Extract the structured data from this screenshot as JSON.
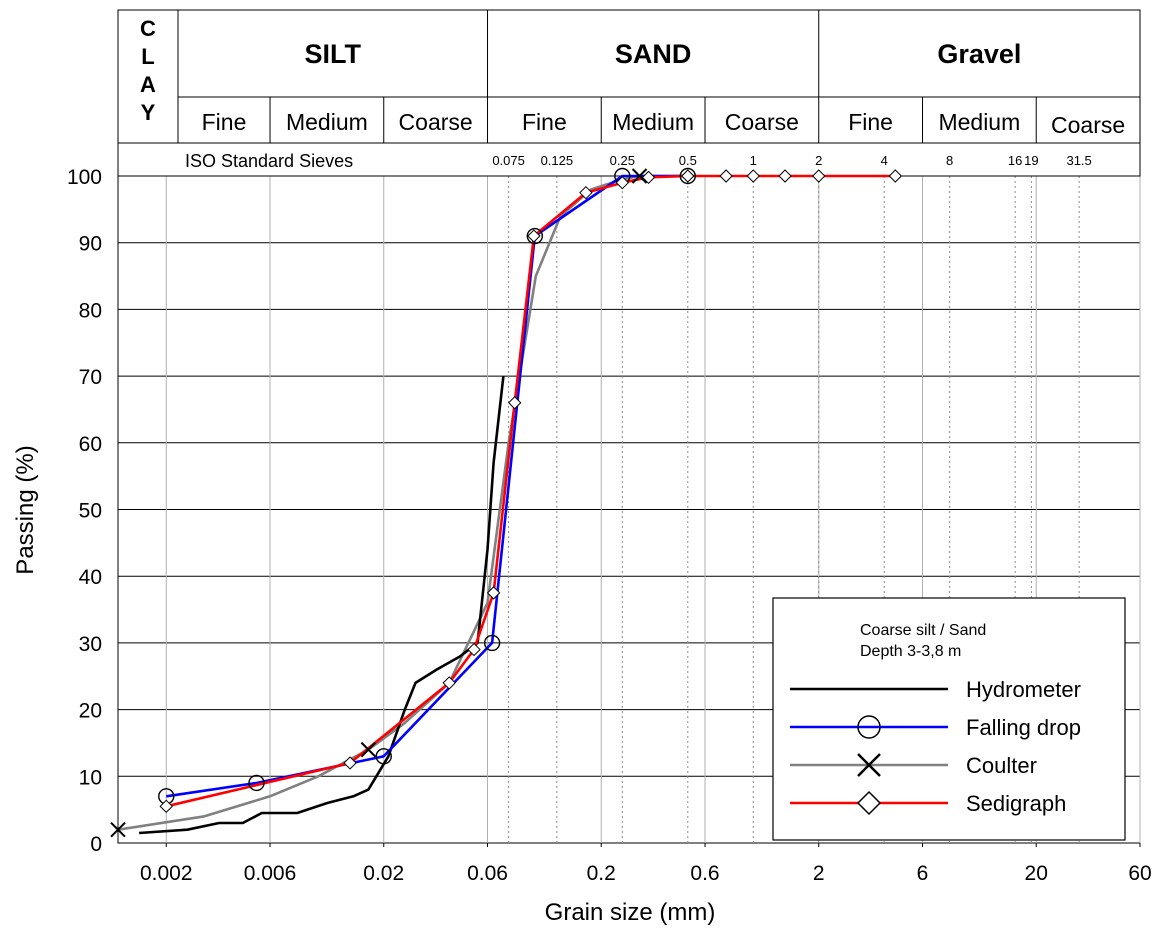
{
  "chart_data": {
    "type": "line",
    "xlabel": "Grain size (mm)",
    "ylabel": "Passing (%)",
    "x_scale": "log",
    "xlim": [
      0.0012,
      60
    ],
    "ylim": [
      0,
      100
    ],
    "grid": true,
    "x_ticks": [
      0.002,
      0.006,
      0.02,
      0.06,
      0.2,
      0.6,
      2,
      6,
      20,
      60
    ],
    "x_tick_labels": [
      "0.002",
      "0.006",
      "0.02",
      "0.06",
      "0.2",
      "0.6",
      "2",
      "6",
      "20",
      "60"
    ],
    "y_ticks": [
      0,
      10,
      20,
      30,
      40,
      50,
      60,
      70,
      80,
      90,
      100
    ],
    "classification": {
      "clay_label": "CLAY",
      "groups": [
        {
          "name": "SILT",
          "from": 0.002,
          "to": 0.06,
          "subs": [
            {
              "name": "Fine",
              "from": 0.002,
              "to": 0.006
            },
            {
              "name": "Medium",
              "from": 0.006,
              "to": 0.02
            },
            {
              "name": "Coarse",
              "from": 0.02,
              "to": 0.06
            }
          ]
        },
        {
          "name": "SAND",
          "from": 0.06,
          "to": 2,
          "subs": [
            {
              "name": "Fine",
              "from": 0.06,
              "to": 0.2
            },
            {
              "name": "Medium",
              "from": 0.2,
              "to": 0.6
            },
            {
              "name": "Coarse",
              "from": 0.6,
              "to": 2
            }
          ]
        },
        {
          "name": "Gravel",
          "from": 2,
          "to": 60,
          "subs": [
            {
              "name": "Fine",
              "from": 2,
              "to": 6
            },
            {
              "name": "Medium",
              "from": 6,
              "to": 20
            },
            {
              "name": "Coarse",
              "from": 20,
              "to": 60
            }
          ]
        }
      ]
    },
    "sieves": {
      "title": "ISO Standard Sieves",
      "values": [
        0.075,
        0.125,
        0.25,
        0.5,
        1,
        2,
        4,
        8,
        16,
        19,
        31.5
      ],
      "labels": [
        "0.075",
        "0.125",
        "0.25",
        "0.5",
        "1",
        "2",
        "4",
        "8",
        "16",
        "19",
        "31.5"
      ]
    },
    "legend": {
      "title_lines": [
        "Coarse silt / Sand",
        "Depth 3-3,8 m"
      ],
      "placement": "bottom-right"
    },
    "series": [
      {
        "name": "Hydrometer",
        "color": "#000000",
        "marker": "none",
        "x": [
          0.0015,
          0.0025,
          0.0035,
          0.0045,
          0.0055,
          0.0065,
          0.008,
          0.011,
          0.0145,
          0.017,
          0.021,
          0.025,
          0.028,
          0.035,
          0.045,
          0.054,
          0.06,
          0.064,
          0.071
        ],
        "y": [
          1.5,
          2,
          3,
          3,
          4.5,
          4.5,
          4.5,
          6,
          7,
          8,
          13,
          20,
          24,
          26,
          28,
          30,
          44,
          57,
          70
        ]
      },
      {
        "name": "Falling drop",
        "color": "#0000ff",
        "marker": "circle",
        "x": [
          0.002,
          0.0052,
          0.02,
          0.063,
          0.099,
          0.25,
          0.5
        ],
        "y": [
          7,
          9,
          13,
          30,
          91,
          100,
          100
        ],
        "marker_x": [
          0.002,
          0.0052,
          0.02,
          0.063,
          0.099,
          0.25,
          0.5
        ],
        "marker_y": [
          7,
          9,
          13,
          30,
          91,
          100,
          100
        ]
      },
      {
        "name": "Coulter",
        "color": "#808080",
        "marker": "cross",
        "x": [
          0.0012,
          0.003,
          0.006,
          0.01,
          0.017,
          0.025,
          0.04,
          0.06,
          0.075,
          0.1,
          0.13,
          0.18,
          0.25,
          0.3,
          0.5
        ],
        "y": [
          2,
          4,
          7,
          10,
          14,
          18,
          24,
          36,
          60,
          85,
          94,
          98,
          99.5,
          100,
          100
        ],
        "marker_x": [
          0.0012,
          0.017,
          0.3
        ],
        "marker_y": [
          2,
          14,
          100
        ]
      },
      {
        "name": "Sedigraph",
        "color": "#ff0000",
        "marker": "diamond",
        "x": [
          0.002,
          0.014,
          0.04,
          0.052,
          0.064,
          0.08,
          0.098,
          0.17,
          0.25,
          0.33,
          0.5,
          0.75,
          1,
          1.4,
          2,
          4.5
        ],
        "y": [
          5.5,
          12,
          24,
          29,
          37.5,
          66,
          91,
          97.5,
          99,
          99.8,
          100,
          100,
          100,
          100,
          100,
          100
        ],
        "marker_x": [
          0.002,
          0.014,
          0.04,
          0.052,
          0.064,
          0.08,
          0.098,
          0.17,
          0.25,
          0.33,
          0.5,
          0.75,
          1,
          1.4,
          2,
          4.5
        ],
        "marker_y": [
          5.5,
          12,
          24,
          29,
          37.5,
          66,
          91,
          97.5,
          99,
          99.8,
          100,
          100,
          100,
          100,
          100,
          100
        ]
      }
    ]
  }
}
